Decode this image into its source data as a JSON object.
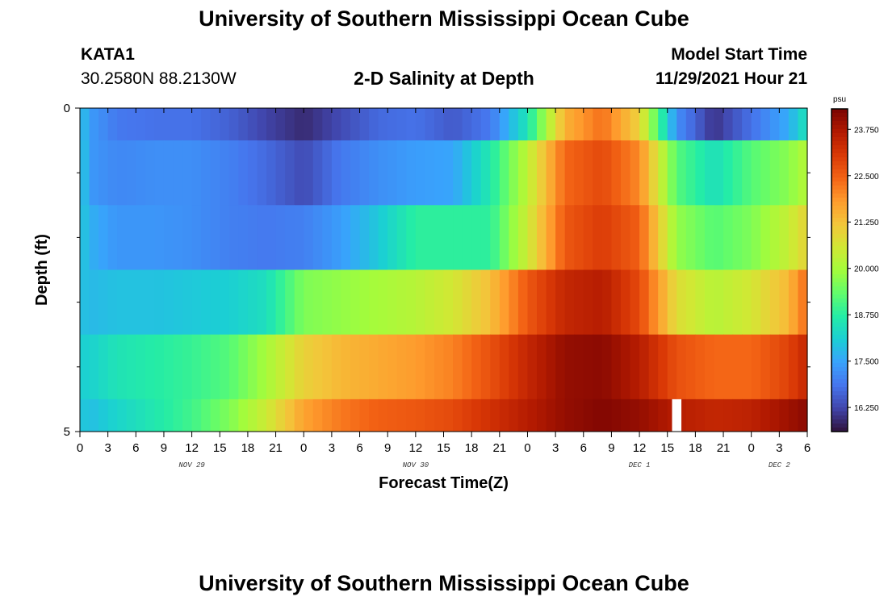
{
  "header": {
    "title": "University of Southern Mississippi Ocean Cube",
    "station_id": "KATA1",
    "coords": "30.2580N  88.2130W",
    "subtitle": "2-D Salinity at Depth",
    "model_start_label": "Model Start Time",
    "model_start_value": "11/29/2021 Hour 21"
  },
  "footer": {
    "title": "University of Southern Mississippi Ocean Cube"
  },
  "chart_data": {
    "type": "heatmap",
    "xlabel": "Forecast Time(Z)",
    "ylabel": "Depth (ft)",
    "x_tick_labels": [
      "0",
      "3",
      "6",
      "9",
      "12",
      "15",
      "18",
      "21",
      "0",
      "3",
      "6",
      "9",
      "12",
      "15",
      "18",
      "21",
      "0",
      "3",
      "6",
      "9",
      "12",
      "15",
      "18",
      "21",
      "0",
      "3",
      "6"
    ],
    "date_labels": [
      {
        "label": "NOV 29",
        "tick_index": 4
      },
      {
        "label": "NOV 30",
        "tick_index": 12
      },
      {
        "label": "DEC 1",
        "tick_index": 20
      },
      {
        "label": "DEC 2",
        "tick_index": 25
      }
    ],
    "y_tick_labels": [
      {
        "label": "0",
        "depth": 0
      },
      {
        "label": "5",
        "depth": 5
      }
    ],
    "y_minor_ticks": [
      1,
      2,
      3,
      4
    ],
    "ylim": [
      0,
      5
    ],
    "xlim_hours": [
      0,
      78
    ],
    "colorbar": {
      "unit": "psu",
      "min": 15.6,
      "max": 24.3,
      "labels": [
        "23.750",
        "22.500",
        "21.250",
        "20.000",
        "18.750",
        "17.500",
        "16.250"
      ],
      "colormap": [
        "#30123b",
        "#4145ab",
        "#4675ed",
        "#39a2fc",
        "#1bcfd4",
        "#24eca6",
        "#61fc6c",
        "#a4fc3b",
        "#d1e834",
        "#f3c63a",
        "#fe9b2d",
        "#f36315",
        "#d93806",
        "#b11901",
        "#7a0402"
      ]
    },
    "depth_bands": [
      0,
      1,
      2,
      3,
      4,
      5
    ],
    "value_keyframes_hours": [
      0,
      1.5,
      4,
      8,
      12,
      16,
      20,
      24,
      28,
      32,
      36,
      40,
      44,
      48,
      52,
      56,
      60,
      64,
      68,
      72,
      76,
      78
    ],
    "values": [
      [
        17.9,
        17.3,
        16.9,
        16.8,
        16.8,
        16.6,
        16.2,
        15.9,
        16.3,
        16.7,
        16.8,
        16.5,
        16.9,
        18.5,
        21.5,
        22.3,
        21.0,
        17.2,
        16.0,
        16.8,
        17.6,
        18.5
      ],
      [
        18.0,
        17.3,
        17.1,
        17.2,
        17.2,
        17.0,
        16.7,
        16.3,
        16.9,
        17.2,
        17.4,
        17.5,
        18.6,
        20.3,
        22.4,
        22.8,
        22.0,
        19.2,
        18.4,
        19.2,
        19.7,
        20.2
      ],
      [
        18.0,
        17.6,
        17.3,
        17.3,
        17.2,
        17.0,
        16.9,
        17.0,
        17.4,
        18.0,
        18.8,
        18.8,
        18.8,
        20.5,
        22.6,
        23.0,
        22.5,
        19.8,
        19.2,
        19.6,
        20.4,
        21.0
      ],
      [
        17.9,
        17.8,
        17.9,
        17.9,
        18.0,
        18.1,
        18.4,
        19.6,
        19.8,
        20.0,
        20.2,
        20.6,
        21.3,
        22.6,
        23.4,
        23.6,
        22.8,
        20.8,
        20.2,
        20.6,
        21.4,
        22.4
      ],
      [
        18.1,
        18.2,
        18.5,
        18.7,
        18.9,
        19.2,
        20.0,
        21.0,
        21.4,
        21.6,
        21.8,
        22.1,
        22.7,
        23.4,
        24.0,
        24.1,
        23.6,
        22.7,
        22.4,
        22.4,
        22.9,
        23.4
      ],
      [
        18.0,
        17.9,
        18.2,
        18.6,
        19.0,
        19.6,
        20.5,
        21.7,
        22.2,
        22.5,
        22.6,
        22.8,
        23.2,
        23.6,
        24.0,
        24.2,
        24.0,
        23.6,
        23.4,
        23.5,
        23.9,
        24.1
      ]
    ],
    "missing_data": [
      {
        "depth_band": 5,
        "hours": [
          63.5,
          64.5
        ]
      }
    ]
  }
}
